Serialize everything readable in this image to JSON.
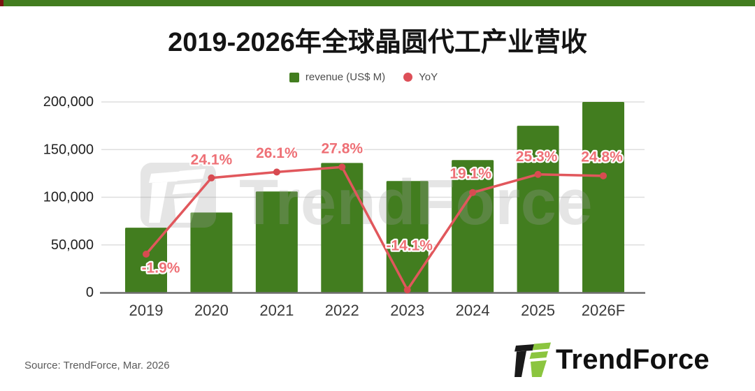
{
  "page": {
    "title": "2019-2026年全球晶圆代工产业营收"
  },
  "top_bar": {
    "color": "#427d1f",
    "corner_color": "#7a1410"
  },
  "legend": {
    "items": [
      {
        "label": "revenue (US$ M)",
        "marker": "square",
        "color": "#427d1f"
      },
      {
        "label": "YoY",
        "marker": "circle",
        "color": "#dd4f58"
      }
    ]
  },
  "chart_data": {
    "type": "bar+line",
    "title": "2019-2026年全球晶圆代工产业营收",
    "categories": [
      "2019",
      "2020",
      "2021",
      "2022",
      "2023",
      "2024",
      "2025",
      "2026F"
    ],
    "series": [
      {
        "name": "revenue (US$ M)",
        "type": "bar",
        "color": "#427d1f",
        "values": [
          68000,
          84000,
          106000,
          136000,
          117000,
          139000,
          175000,
          200000
        ]
      },
      {
        "name": "YoY",
        "type": "line",
        "color": "#e1575c",
        "point_color": "#d84b51",
        "values_percent": [
          -1.9,
          24.1,
          26.1,
          27.8,
          -14.1,
          19.1,
          25.3,
          24.8
        ],
        "labels": [
          "-1.9%",
          "24.1%",
          "26.1%",
          "27.8%",
          "-14.1%",
          "19.1%",
          "25.3%",
          "24.8%"
        ]
      }
    ],
    "y_axis": {
      "min": 0,
      "max": 200000,
      "ticks": [
        {
          "value": 0,
          "label": "0"
        },
        {
          "value": 50000,
          "label": "50,000"
        },
        {
          "value": 100000,
          "label": "100,000"
        },
        {
          "value": 150000,
          "label": "150,000"
        },
        {
          "value": 200000,
          "label": "200,000"
        }
      ]
    },
    "y2_axis": {
      "min": -15,
      "max": 50,
      "visible": false
    },
    "grid": true,
    "legend_position": "top"
  },
  "watermark": {
    "text": "TrendForce"
  },
  "footer": {
    "source": "Source: TrendForce, Mar. 2026",
    "logo_text": "TrendForce",
    "logo_colors": {
      "dark": "#1a1a1a",
      "green": "#8bc53f"
    }
  }
}
